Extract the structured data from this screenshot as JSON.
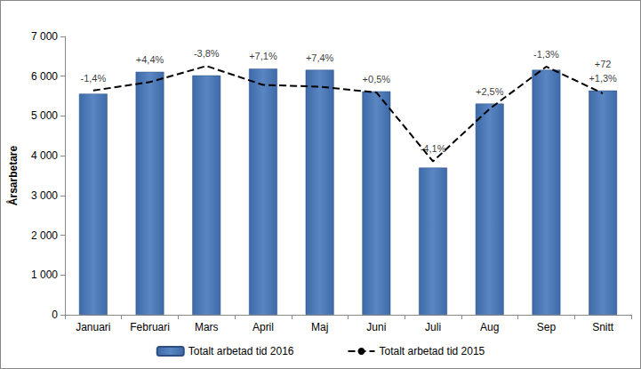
{
  "chart_data": {
    "type": "bar",
    "categories": [
      "Januari",
      "Februari",
      "Mars",
      "April",
      "Maj",
      "Juni",
      "Juli",
      "Aug",
      "Sep",
      "Snitt"
    ],
    "series": [
      {
        "name": "Totalt arbetad tid 2016",
        "type": "bar",
        "color": "#3d6aa8",
        "values": [
          5560,
          6110,
          6020,
          6190,
          6160,
          5620,
          3700,
          5310,
          6160,
          5640
        ]
      },
      {
        "name": "Totalt arbetad tid 2015",
        "type": "line",
        "color": "#000000",
        "line_style": "dashed",
        "marker": "none",
        "values": [
          5640,
          5852,
          6258,
          5780,
          5736,
          5592,
          3858,
          5180,
          6241,
          5568
        ]
      }
    ],
    "annotations": [
      [
        "-1,4%"
      ],
      [
        "+4,4%"
      ],
      [
        "-3,8%"
      ],
      [
        "+7,1%"
      ],
      [
        "+7,4%"
      ],
      [
        "+0,5%"
      ],
      [
        "-4,1%"
      ],
      [
        "+2,5%"
      ],
      [
        "-1,3%"
      ],
      [
        "+72",
        "+1,3%"
      ]
    ],
    "ylabel": "Årsarbetare",
    "ylim": [
      0,
      7000
    ],
    "yticks": [
      0,
      {
        "value": 1000,
        "label": "1 000"
      },
      {
        "value": 2000,
        "label": "2 000"
      },
      {
        "value": 3000,
        "label": "3 000"
      },
      {
        "value": 4000,
        "label": "4 000"
      },
      {
        "value": 5000,
        "label": "5 000"
      },
      {
        "value": 6000,
        "label": "6 000"
      },
      {
        "value": 7000,
        "label": "7 000"
      }
    ],
    "grid": false,
    "legend": "bottom"
  }
}
